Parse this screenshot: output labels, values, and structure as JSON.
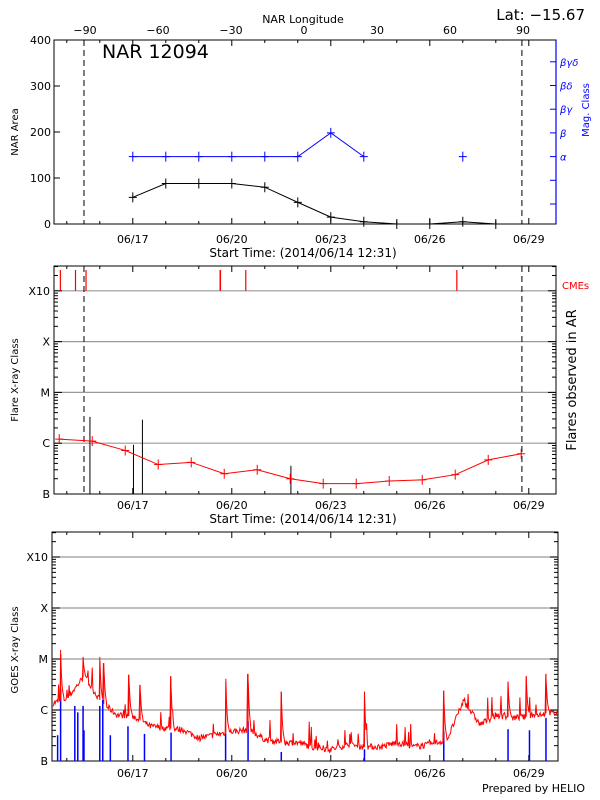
{
  "header": {
    "lat_label": "Lat: −15.67",
    "credit": "Prepared by HELIO"
  },
  "chart_data": [
    {
      "type": "line",
      "panel": "nar",
      "title": "NAR 12094",
      "ylabel": "NAR Area",
      "y2label": "Mag. Class",
      "top_xlabel": "NAR Longitude",
      "xlabel": "Start Time: (2014/06/14 12:31)",
      "start": "06/14 12:31",
      "ylim": [
        0,
        400
      ],
      "yticks": [
        "0",
        "100",
        "200",
        "300",
        "400"
      ],
      "xticks": [
        "06/17",
        "06/20",
        "06/23",
        "06/26",
        "06/29"
      ],
      "top_xticks": [
        "-90",
        "-60",
        "-30",
        "0",
        "30",
        "60",
        "90"
      ],
      "mag_classes": [
        "",
        "",
        "α",
        "β",
        "βγ",
        "βδ",
        "βγδ"
      ],
      "limb_lines": [
        "06/15 12:30",
        "06/28 19:00"
      ],
      "series": [
        {
          "color": "#000000",
          "x": [
            "06/17 00:00",
            "06/18 00:00",
            "06/19 00:00",
            "06/20 00:00",
            "06/21 00:00",
            "06/22 00:00",
            "06/23 00:00",
            "06/24 00:00",
            "06/25 00:00",
            "06/26 00:00",
            "06/27 00:00",
            "06/28 00:00"
          ],
          "y": [
            58,
            88,
            88,
            88,
            80,
            47,
            15,
            5,
            0,
            0,
            5,
            0
          ]
        },
        {
          "color": "#0000ff",
          "axis": "mag_class",
          "segments": [
            {
              "x": [
                "06/17 00:00",
                "06/18 00:00",
                "06/19 00:00",
                "06/20 00:00",
                "06/21 00:00",
                "06/22 00:00",
                "06/23 00:00",
                "06/24 00:00"
              ],
              "y": [
                "α",
                "α",
                "α",
                "α",
                "α",
                "α",
                "β",
                "α"
              ]
            },
            {
              "x": [
                "06/27 00:00"
              ],
              "y": [
                "α"
              ]
            }
          ]
        }
      ],
      "grid": false
    },
    {
      "type": "line",
      "panel": "flares",
      "ylabel": "Flare X-ray Class",
      "y2label": "Flares observed in AR",
      "cme_label": "CMEs",
      "xlabel": "Start Time: (2014/06/14 12:31)",
      "start": "06/14 12:31",
      "yscale": "log",
      "yticks": [
        "B",
        "C",
        "M",
        "X",
        "X10"
      ],
      "xticks": [
        "06/17",
        "06/20",
        "06/23",
        "06/26",
        "06/29"
      ],
      "limb_lines": [
        "06/15 12:30",
        "06/28 19:00"
      ],
      "grid": true,
      "daily_level": {
        "color": "#ff0000",
        "x": [
          "06/14 18:30",
          "06/15 18:30",
          "06/16 18:30",
          "06/17 18:30",
          "06/18 18:30",
          "06/19 18:30",
          "06/20 18:30",
          "06/21 18:30",
          "06/22 18:30",
          "06/23 18:30",
          "06/24 18:30",
          "06/25 18:30",
          "06/26 18:30",
          "06/27 18:30",
          "06/28 18:30"
        ],
        "y": [
          "C1.2",
          "C1.1",
          "B7.2",
          "B3.8",
          "B4.2",
          "B2.5",
          "B3.0",
          "B2.0",
          "B1.6",
          "B1.6",
          "B1.8",
          "B1.9",
          "B2.4",
          "B4.7",
          "B6.2"
        ]
      },
      "flares": {
        "color": "#000000",
        "x": [
          "06/15 16:50",
          "06/17 00:30",
          "06/17 07:00",
          "06/21 19:00"
        ],
        "y": [
          "C3.3",
          "B9.3",
          "C2.9",
          "B3.6"
        ]
      },
      "cmes": {
        "color": "#ff0000",
        "x": [
          "06/14 19:20",
          "06/15 06:20",
          "06/15 14:00",
          "06/19 15:30",
          "06/19 15:45",
          "06/20 10:10",
          "06/26 19:40"
        ]
      }
    },
    {
      "type": "line",
      "panel": "goes",
      "ylabel": "GOES X-ray Class",
      "start": "06/14 12:31",
      "yscale": "log",
      "yticks": [
        "B",
        "C",
        "M",
        "X",
        "X10"
      ],
      "xticks": [
        "06/17",
        "06/20",
        "06/23",
        "06/26",
        "06/29"
      ],
      "grid": true,
      "series": [
        {
          "color": "#ff0000",
          "background": {
            "x": [
              "06/14 12:31",
              "06/15 00:31",
              "06/15 12:31",
              "06/16 00:31",
              "06/16 12:31",
              "06/17 00:31",
              "06/17 12:31",
              "06/18 00:31",
              "06/18 12:31",
              "06/19 00:31",
              "06/19 12:31",
              "06/20 00:31",
              "06/20 12:31",
              "06/21 00:31",
              "06/21 12:31",
              "06/22 00:31",
              "06/22 12:31",
              "06/23 00:31",
              "06/23 12:31",
              "06/24 00:31",
              "06/24 12:31",
              "06/25 00:31",
              "06/25 12:31",
              "06/26 00:31",
              "06/26 12:31",
              "06/27 00:31",
              "06/27 12:31",
              "06/28 00:31",
              "06/28 12:31",
              "06/29 00:31",
              "06/29 12:31"
            ],
            "y": [
              "C1.3",
              "C1.7",
              "C4.6",
              "C1.5",
              "B8",
              "B7.5",
              "B4.8",
              "B4.4",
              "B4.1",
              "B2.8",
              "B3.3",
              "B3.8",
              "B4.1",
              "B2.6",
              "B2.3",
              "B2.3",
              "B1.8",
              "B1.7",
              "B2.1",
              "B1.9",
              "B1.9",
              "B2.3",
              "B1.9",
              "B2.1",
              "B2.6",
              "C1.5",
              "B5.2",
              "B8",
              "B7",
              "B7.5",
              "B8.7"
            ]
          },
          "peaks": {
            "x": [
              "06/14 19:30",
              "06/15 11:50",
              "06/16 00:00",
              "06/16 02:55",
              "06/16 21:10",
              "06/17 05:20",
              "06/18 03:40",
              "06/19 19:40",
              "06/20 11:50",
              "06/21 12:00",
              "06/24 00:30",
              "06/26 10:10",
              "06/28 08:55",
              "06/28 22:10",
              "06/29 12:30"
            ],
            "y": [
              "M1.5",
              "M1.1",
              "M1.1",
              "C8.3",
              "C4.9",
              "C3.1",
              "C4.6",
              "C4.1",
              "C5.1",
              "C2.3",
              "C2.3",
              "C2.4",
              "C3.6",
              "C4.6",
              "C5.1"
            ]
          }
        },
        {
          "color": "#0000ff",
          "peaks": {
            "x": [
              "06/14 17:20",
              "06/14 19:30",
              "06/15 05:50",
              "06/15 08:00",
              "06/15 11:50",
              "06/15 12:30",
              "06/16 00:00",
              "06/16 02:10",
              "06/16 07:40",
              "06/16 20:30",
              "06/17 08:30",
              "06/18 03:50",
              "06/19 19:30",
              "06/20 11:50",
              "06/21 12:00",
              "06/24 00:30",
              "06/26 10:10",
              "06/28 08:55",
              "06/28 24:30",
              "06/29 12:30"
            ],
            "y": [
              "B3.2",
              "C2.6",
              "C1.2",
              "B9",
              "C1.2",
              "B4",
              "C1.2",
              "C1.6",
              "B3.2",
              "B4.8",
              "B3.4",
              "B3.6",
              "B3.5",
              "B6",
              "B1.5",
              "B1.7",
              "B3.8",
              "B4.2",
              "B4",
              "B7"
            ]
          }
        }
      ]
    }
  ]
}
